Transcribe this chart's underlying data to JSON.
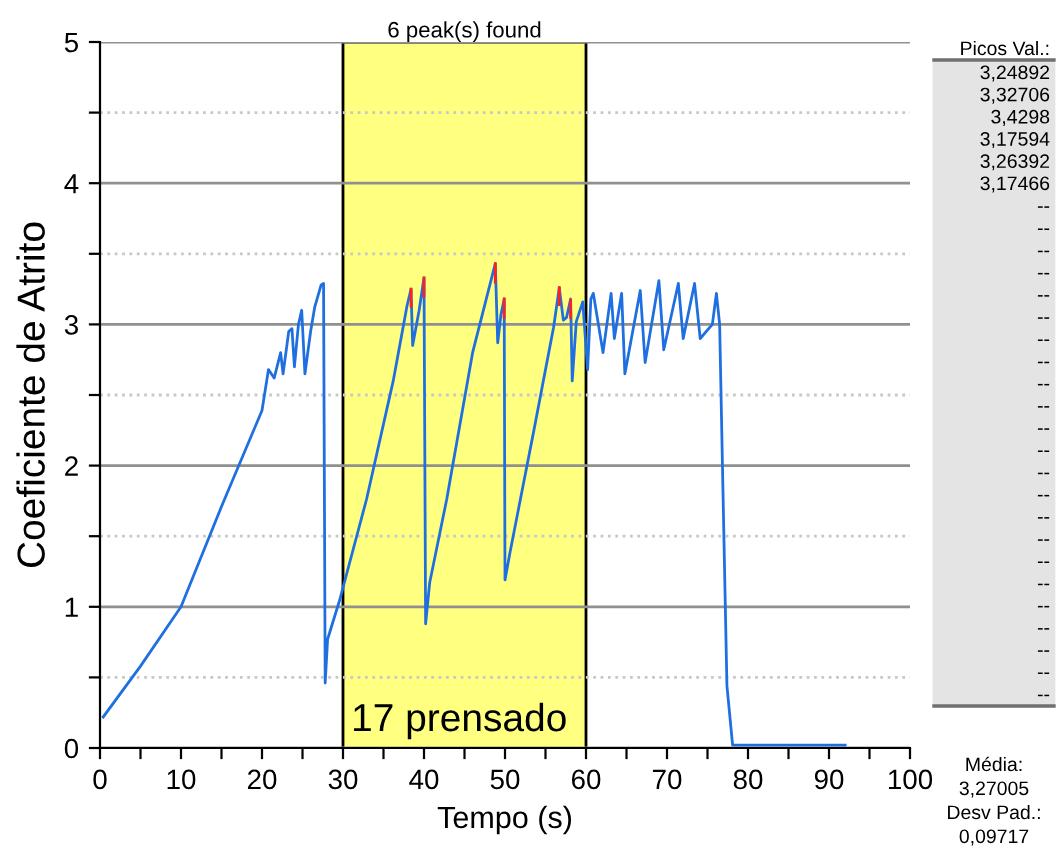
{
  "chart_data": {
    "type": "line",
    "xlabel": "Tempo (s)",
    "ylabel": "Coeficiente de Atrito",
    "xlim": [
      0,
      100
    ],
    "xticks": [
      0,
      {
        "value": 5,
        "label": null
      },
      10,
      {
        "value": 15,
        "label": null
      },
      20,
      {
        "value": 25,
        "label": null
      },
      30,
      {
        "value": 35,
        "label": null
      },
      40,
      {
        "value": 45,
        "label": null
      },
      50,
      {
        "value": 55,
        "label": null
      },
      60,
      {
        "value": 65,
        "label": null
      },
      70,
      {
        "value": 75,
        "label": null
      },
      80,
      {
        "value": 85,
        "label": null
      },
      90,
      {
        "value": 95,
        "label": null
      },
      100
    ],
    "ylim": [
      0,
      5
    ],
    "yticks": [
      0,
      {
        "value": 0.5,
        "label": null
      },
      1,
      {
        "value": 1.5,
        "label": null
      },
      2,
      {
        "value": 2.5,
        "label": null
      },
      3,
      {
        "value": 3.5,
        "label": null
      },
      4,
      {
        "value": 4.5,
        "label": null
      },
      5
    ],
    "grid": "y",
    "legend": false,
    "line_style": "solid",
    "marker": "none",
    "bands": [
      {
        "axis": "x",
        "from": 30,
        "to": 60,
        "label": "6 peak(s) found",
        "color": "#ffff80"
      }
    ],
    "series": [
      {
        "color": "#1f6fe0",
        "x": [
          0.4,
          5,
          10,
          15,
          20,
          20.8,
          21.5,
          22.3,
          22.6,
          23.3,
          23.7,
          24,
          24.5,
          24.9,
          25.3,
          26,
          26.5,
          27.3,
          27.6,
          27.8,
          28.1,
          29.6,
          32.9,
          36.2,
          37.9,
          38.4,
          38.6,
          39.4,
          40.0,
          40.2,
          40.7,
          42.8,
          46.0,
          48.8,
          49.1,
          49.5,
          49.9,
          50.0,
          50.6,
          53.5,
          56.0,
          56.7,
          57.2,
          57.6,
          58.1,
          58.3,
          58.8,
          59.6,
          60.2,
          60.6,
          60.9,
          62.1,
          63.1,
          63.5,
          64.4,
          64.8,
          66.7,
          67.3,
          69.0,
          69.6,
          71.4,
          72.0,
          73.4,
          74.1,
          75.6,
          76.1,
          76.5,
          76.9,
          77.4,
          78.1,
          85,
          92
        ],
        "values": [
          0.22,
          0.58,
          1.0,
          1.71,
          2.39,
          2.68,
          2.62,
          2.8,
          2.65,
          2.95,
          2.97,
          2.7,
          3.0,
          3.1,
          2.65,
          2.95,
          3.12,
          3.28,
          3.29,
          0.46,
          0.77,
          1.05,
          1.76,
          2.6,
          3.13,
          3.25,
          2.85,
          3.1,
          3.33,
          0.88,
          1.17,
          1.76,
          2.8,
          3.43,
          2.87,
          3.07,
          3.18,
          1.19,
          1.38,
          2.23,
          2.98,
          3.26,
          3.03,
          3.05,
          3.18,
          2.6,
          3.02,
          3.16,
          2.68,
          3.18,
          3.22,
          2.8,
          3.22,
          2.9,
          3.22,
          2.65,
          3.24,
          2.73,
          3.31,
          2.82,
          3.29,
          2.9,
          3.29,
          2.9,
          3.0,
          3.22,
          3.0,
          1.85,
          0.44,
          0.02,
          0.02,
          0.02
        ]
      },
      {
        "color": "#ff2020",
        "x": [
          38.4,
          38.4,
          null,
          40.0,
          40.0,
          null,
          48.8,
          48.8,
          null,
          49.9,
          49.9,
          null,
          56.7,
          56.7,
          null,
          58.1,
          58.1
        ],
        "values": [
          3.13,
          3.25,
          null,
          3.2,
          3.33,
          null,
          3.3,
          3.43,
          null,
          3.05,
          3.18,
          null,
          3.14,
          3.26,
          null,
          3.05,
          3.17
        ]
      }
    ],
    "annotations": [
      "17 prensado",
      "Picos Val.:",
      "3,24892",
      "3,32706",
      "3,4298",
      "3,17594",
      "3,26392",
      "3,17466",
      "--",
      "--",
      "--",
      "--",
      "--",
      "--",
      "--",
      "--",
      "--",
      "--",
      "--",
      "--",
      "--",
      "--",
      "--",
      "--",
      "--",
      "--",
      "--",
      "--",
      "--",
      "--",
      "--",
      "Média:",
      "3,27005",
      "Desv Pad.:",
      "0,09717"
    ]
  }
}
